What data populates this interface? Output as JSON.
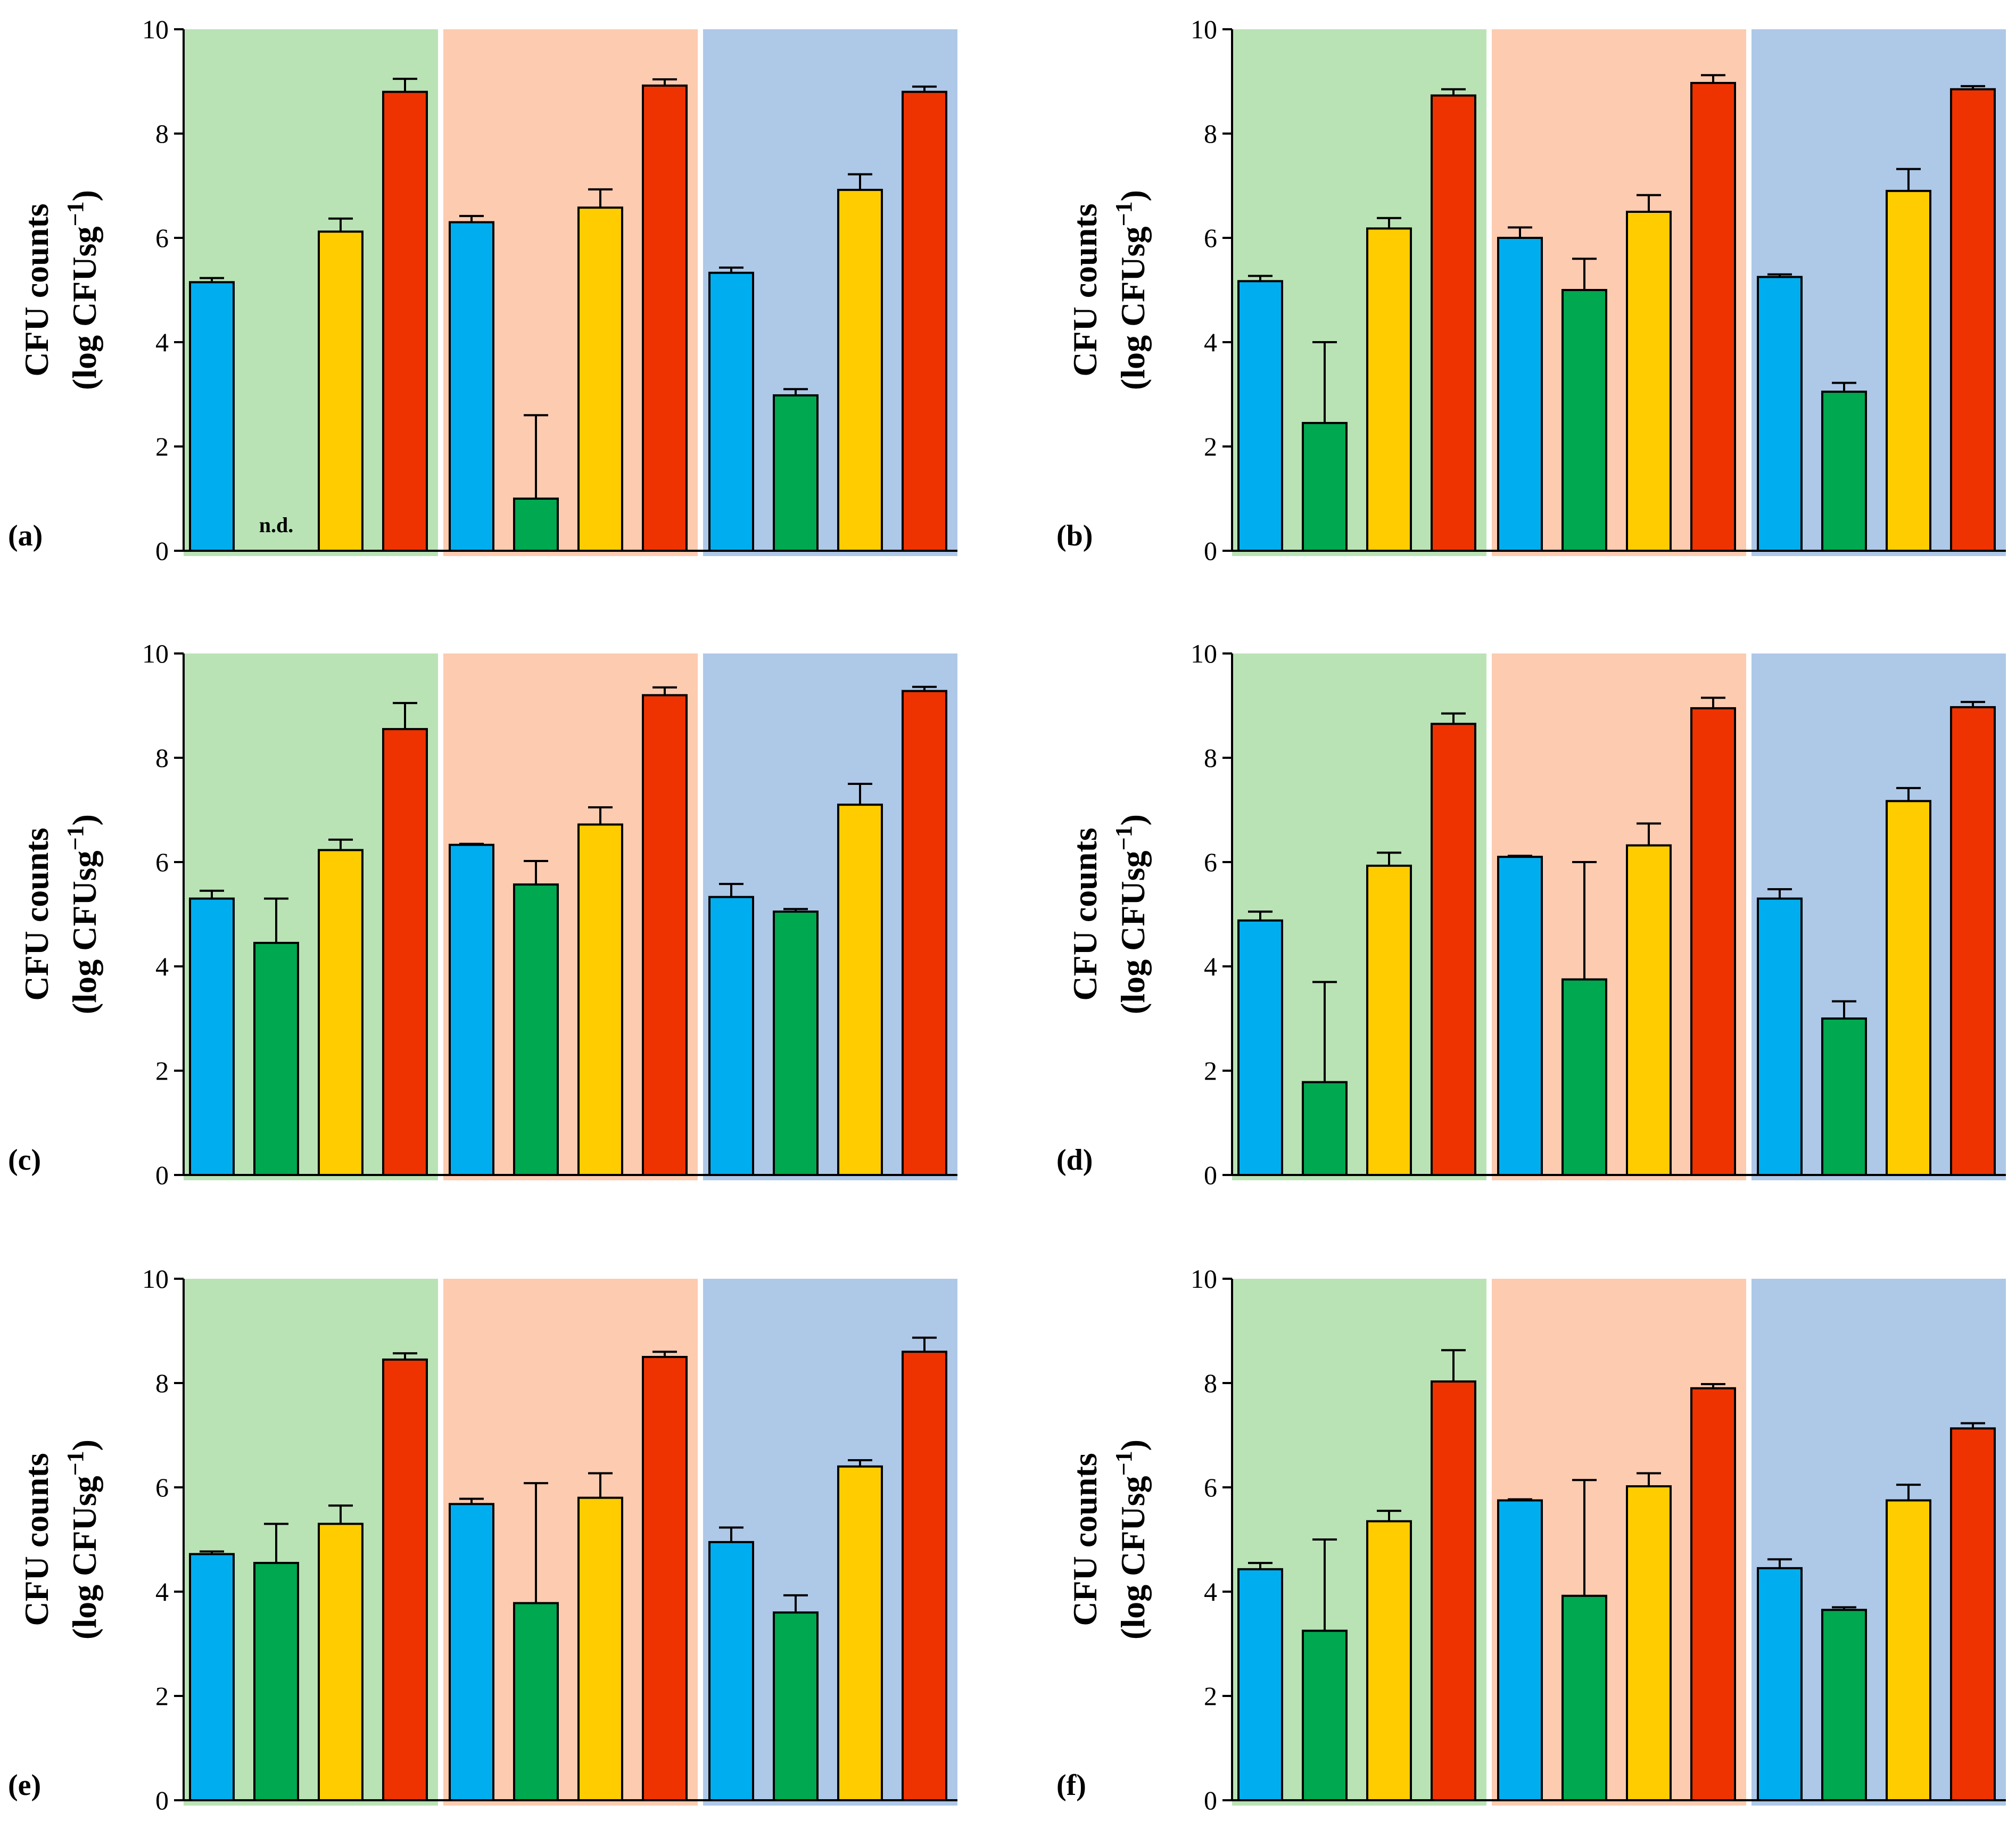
{
  "figure": {
    "ylabel_line1": "CFU counts",
    "ylabel_line2_prefix": "(log CFUsg",
    "ylabel_superscript": "−1",
    "ylabel_line2_suffix": ")"
  },
  "colors": {
    "group_backgrounds": [
      "#bae3b5",
      "#fdcbb0",
      "#aec8e8"
    ],
    "bars": [
      "#00aeef",
      "#00a84f",
      "#ffcc00",
      "#ee3300"
    ],
    "stroke": "#000000"
  },
  "chart_data": [
    {
      "type": "bar",
      "panel": "(a)",
      "ylim": [
        0,
        10
      ],
      "yticks": [
        0,
        2,
        4,
        6,
        8,
        10
      ],
      "groups": 3,
      "values": [
        [
          5.15,
          null,
          6.12,
          8.8
        ],
        [
          6.3,
          1.0,
          6.58,
          8.92
        ],
        [
          5.33,
          2.98,
          6.92,
          8.8
        ]
      ],
      "errors": [
        [
          0.08,
          null,
          0.25,
          0.25
        ],
        [
          0.12,
          1.6,
          0.35,
          0.12
        ],
        [
          0.1,
          0.12,
          0.3,
          0.1
        ]
      ],
      "annotations": [
        {
          "group": 0,
          "bar": 1,
          "text": "n.d."
        }
      ]
    },
    {
      "type": "bar",
      "panel": "(b)",
      "ylim": [
        0,
        10
      ],
      "yticks": [
        0,
        2,
        4,
        6,
        8,
        10
      ],
      "groups": 3,
      "values": [
        [
          5.17,
          2.45,
          6.18,
          8.73
        ],
        [
          6.0,
          5.0,
          6.5,
          8.97
        ],
        [
          5.25,
          3.05,
          6.9,
          8.85
        ]
      ],
      "errors": [
        [
          0.1,
          1.55,
          0.2,
          0.12
        ],
        [
          0.2,
          0.6,
          0.32,
          0.15
        ],
        [
          0.05,
          0.17,
          0.42,
          0.06
        ]
      ],
      "annotations": []
    },
    {
      "type": "bar",
      "panel": "(c)",
      "ylim": [
        0,
        10
      ],
      "yticks": [
        0,
        2,
        4,
        6,
        8,
        10
      ],
      "groups": 3,
      "values": [
        [
          5.3,
          4.45,
          6.23,
          8.55
        ],
        [
          6.33,
          5.57,
          6.72,
          9.2
        ],
        [
          5.33,
          5.05,
          7.1,
          9.28
        ]
      ],
      "errors": [
        [
          0.15,
          0.85,
          0.2,
          0.5
        ],
        [
          0.02,
          0.45,
          0.33,
          0.15
        ],
        [
          0.25,
          0.05,
          0.4,
          0.08
        ]
      ],
      "annotations": []
    },
    {
      "type": "bar",
      "panel": "(d)",
      "ylim": [
        0,
        10
      ],
      "yticks": [
        0,
        2,
        4,
        6,
        8,
        10
      ],
      "groups": 3,
      "values": [
        [
          4.88,
          1.78,
          5.93,
          8.65
        ],
        [
          6.1,
          3.75,
          6.32,
          8.95
        ],
        [
          5.3,
          3.0,
          7.17,
          8.97
        ]
      ],
      "errors": [
        [
          0.17,
          1.92,
          0.25,
          0.2
        ],
        [
          0.02,
          2.25,
          0.42,
          0.2
        ],
        [
          0.18,
          0.33,
          0.25,
          0.1
        ]
      ],
      "annotations": []
    },
    {
      "type": "bar",
      "panel": "(e)",
      "ylim": [
        0,
        10
      ],
      "yticks": [
        0,
        2,
        4,
        6,
        8,
        10
      ],
      "groups": 3,
      "values": [
        [
          4.72,
          4.55,
          5.3,
          8.45
        ],
        [
          5.68,
          3.78,
          5.8,
          8.5
        ],
        [
          4.95,
          3.6,
          6.4,
          8.6
        ]
      ],
      "errors": [
        [
          0.05,
          0.75,
          0.35,
          0.12
        ],
        [
          0.1,
          2.3,
          0.47,
          0.1
        ],
        [
          0.28,
          0.33,
          0.12,
          0.27
        ]
      ],
      "annotations": []
    },
    {
      "type": "bar",
      "panel": "(f)",
      "ylim": [
        0,
        10
      ],
      "yticks": [
        0,
        2,
        4,
        6,
        8,
        10
      ],
      "groups": 3,
      "values": [
        [
          4.43,
          3.25,
          5.35,
          8.03
        ],
        [
          5.75,
          3.92,
          6.02,
          7.9
        ],
        [
          4.45,
          3.65,
          5.75,
          7.13
        ]
      ],
      "errors": [
        [
          0.12,
          1.75,
          0.2,
          0.6
        ],
        [
          0.02,
          2.22,
          0.25,
          0.08
        ],
        [
          0.17,
          0.05,
          0.3,
          0.1
        ]
      ],
      "annotations": []
    }
  ]
}
